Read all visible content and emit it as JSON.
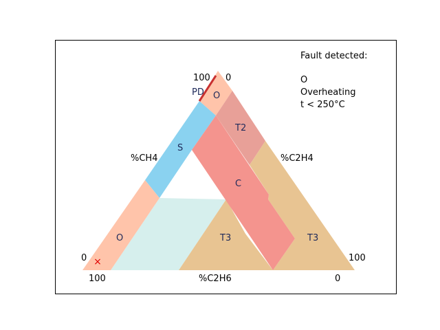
{
  "diagram": {
    "regions": [
      {
        "id": "O-top",
        "label": "O",
        "color": "#ffc4aa"
      },
      {
        "id": "T2",
        "label": "T2",
        "color": "#e8a098"
      },
      {
        "id": "S",
        "label": "S",
        "color": "#8ad2f0"
      },
      {
        "id": "C",
        "label": "C",
        "color": "#f4948e"
      },
      {
        "id": "O-bottom",
        "label": "O",
        "color": "#ffc4aa"
      },
      {
        "id": "ND",
        "label": "",
        "color": "#d6efed"
      },
      {
        "id": "T3-middle",
        "label": "T3",
        "color": "#e8c492"
      },
      {
        "id": "T3-right",
        "label": "T3",
        "color": "#e8c492"
      },
      {
        "id": "PD",
        "label": "PD",
        "color": "#c83030"
      }
    ],
    "axes": {
      "left": "%CH4",
      "right": "%C2H4",
      "bottom": "%C2H6"
    },
    "ticks": {
      "top_left": "100",
      "top_right": "0",
      "left_bottom": "0",
      "right_bottom": "100",
      "bottom_left": "100",
      "bottom_right": "0"
    },
    "marker": {
      "symbol": "×",
      "color": "#e00000"
    },
    "info": {
      "heading": "Fault detected:",
      "code": "O",
      "description": "Overheating",
      "condition": "t < 250°C"
    }
  }
}
